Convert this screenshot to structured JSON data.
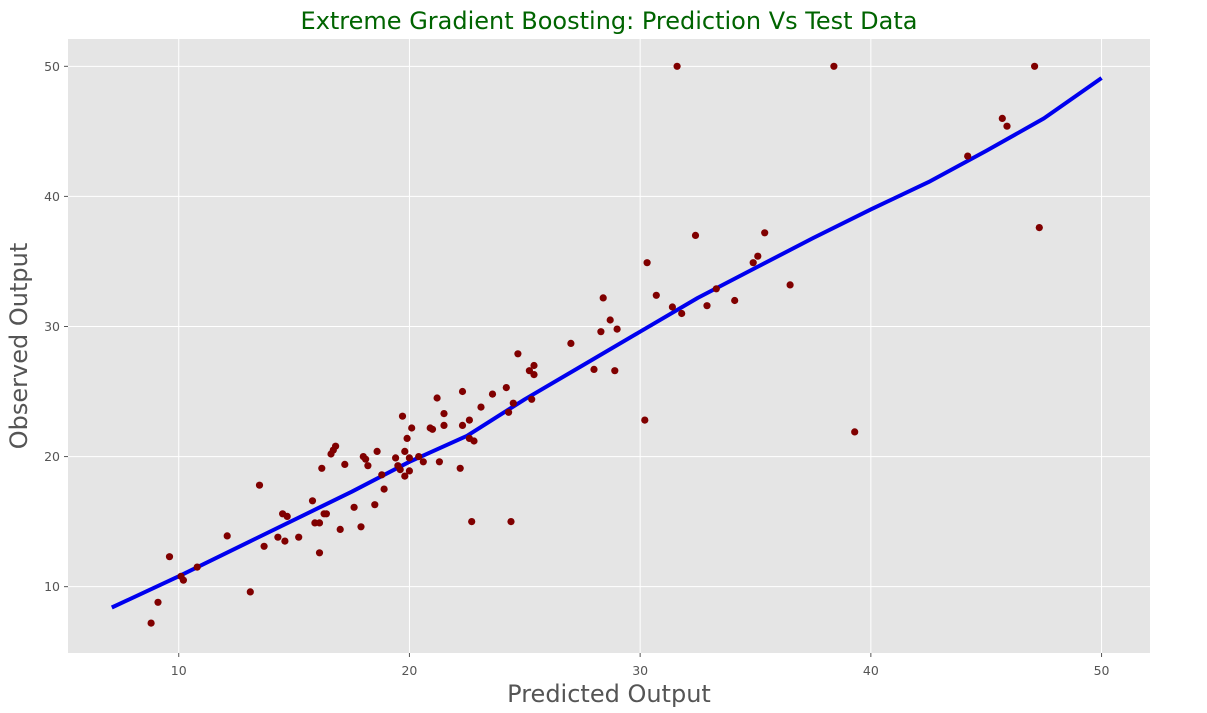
{
  "chart_data": {
    "type": "scatter",
    "title": "Extreme Gradient Boosting: Prediction Vs Test Data",
    "xlabel": "Predicted Output",
    "ylabel": "Observed Output",
    "xlim": [
      5.2,
      52.1
    ],
    "ylim": [
      4.9,
      52.1
    ],
    "xticks": [
      10,
      20,
      30,
      40,
      50
    ],
    "yticks": [
      10,
      20,
      30,
      40,
      50
    ],
    "grid": true,
    "colors": {
      "title": "#006400",
      "points": "#800000",
      "fit_line": "#0000ee",
      "background": "#e5e5e5",
      "grid": "#ffffff"
    },
    "points": [
      [
        8.8,
        7.2
      ],
      [
        9.1,
        8.8
      ],
      [
        9.6,
        12.3
      ],
      [
        10.1,
        10.8
      ],
      [
        10.2,
        10.5
      ],
      [
        10.8,
        11.5
      ],
      [
        12.1,
        13.9
      ],
      [
        13.1,
        9.6
      ],
      [
        13.5,
        17.8
      ],
      [
        13.7,
        13.1
      ],
      [
        14.3,
        13.8
      ],
      [
        14.5,
        15.6
      ],
      [
        14.6,
        13.5
      ],
      [
        14.7,
        15.4
      ],
      [
        15.2,
        13.8
      ],
      [
        15.8,
        16.6
      ],
      [
        15.9,
        14.9
      ],
      [
        16.1,
        14.9
      ],
      [
        16.1,
        12.6
      ],
      [
        16.2,
        19.1
      ],
      [
        16.3,
        15.6
      ],
      [
        16.4,
        15.6
      ],
      [
        16.6,
        20.2
      ],
      [
        16.7,
        20.5
      ],
      [
        16.8,
        20.8
      ],
      [
        17.0,
        14.4
      ],
      [
        17.2,
        19.4
      ],
      [
        17.6,
        16.1
      ],
      [
        17.9,
        14.6
      ],
      [
        18.0,
        20.0
      ],
      [
        18.1,
        19.8
      ],
      [
        18.2,
        19.3
      ],
      [
        18.5,
        16.3
      ],
      [
        18.6,
        20.4
      ],
      [
        18.8,
        18.6
      ],
      [
        18.9,
        17.5
      ],
      [
        19.4,
        19.9
      ],
      [
        19.5,
        19.3
      ],
      [
        19.6,
        19.0
      ],
      [
        19.7,
        23.1
      ],
      [
        19.8,
        20.4
      ],
      [
        19.8,
        18.5
      ],
      [
        19.9,
        21.4
      ],
      [
        20.0,
        19.9
      ],
      [
        20.0,
        18.9
      ],
      [
        20.1,
        22.2
      ],
      [
        20.4,
        20.0
      ],
      [
        20.6,
        19.6
      ],
      [
        20.9,
        22.2
      ],
      [
        21.0,
        22.1
      ],
      [
        21.2,
        24.5
      ],
      [
        21.3,
        19.6
      ],
      [
        21.5,
        23.3
      ],
      [
        21.5,
        22.4
      ],
      [
        22.2,
        19.1
      ],
      [
        22.3,
        25.0
      ],
      [
        22.3,
        22.4
      ],
      [
        22.6,
        21.4
      ],
      [
        22.6,
        22.8
      ],
      [
        22.7,
        15.0
      ],
      [
        22.8,
        21.2
      ],
      [
        23.1,
        23.8
      ],
      [
        23.6,
        24.8
      ],
      [
        24.2,
        25.3
      ],
      [
        24.3,
        23.4
      ],
      [
        24.4,
        15.0
      ],
      [
        24.5,
        24.1
      ],
      [
        24.7,
        27.9
      ],
      [
        25.2,
        26.6
      ],
      [
        25.3,
        24.4
      ],
      [
        25.4,
        27.0
      ],
      [
        25.4,
        26.3
      ],
      [
        27.0,
        28.7
      ],
      [
        28.0,
        26.7
      ],
      [
        28.3,
        29.6
      ],
      [
        28.4,
        32.2
      ],
      [
        28.7,
        30.5
      ],
      [
        28.9,
        26.6
      ],
      [
        29.0,
        29.8
      ],
      [
        30.2,
        22.8
      ],
      [
        30.3,
        34.9
      ],
      [
        30.7,
        32.4
      ],
      [
        31.4,
        31.5
      ],
      [
        31.6,
        50.0
      ],
      [
        31.8,
        31.0
      ],
      [
        32.4,
        37.0
      ],
      [
        32.9,
        31.6
      ],
      [
        33.3,
        32.9
      ],
      [
        34.1,
        32.0
      ],
      [
        34.9,
        34.9
      ],
      [
        35.1,
        35.4
      ],
      [
        35.4,
        37.2
      ],
      [
        36.5,
        33.2
      ],
      [
        38.4,
        50.0
      ],
      [
        39.3,
        21.9
      ],
      [
        44.2,
        43.1
      ],
      [
        45.7,
        46.0
      ],
      [
        45.9,
        45.4
      ],
      [
        47.1,
        50.0
      ],
      [
        47.3,
        37.6
      ]
    ],
    "fit_line": [
      [
        7.1,
        8.4
      ],
      [
        10.0,
        10.8
      ],
      [
        13.0,
        13.4
      ],
      [
        16.0,
        16.0
      ],
      [
        17.5,
        17.3
      ],
      [
        20.0,
        19.6
      ],
      [
        22.5,
        21.6
      ],
      [
        25.0,
        24.4
      ],
      [
        27.5,
        27.0
      ],
      [
        30.0,
        29.6
      ],
      [
        32.5,
        32.2
      ],
      [
        35.0,
        34.5
      ],
      [
        37.5,
        36.8
      ],
      [
        40.0,
        39.0
      ],
      [
        42.5,
        41.1
      ],
      [
        45.0,
        43.5
      ],
      [
        47.5,
        46.0
      ],
      [
        50.0,
        49.1
      ]
    ]
  }
}
